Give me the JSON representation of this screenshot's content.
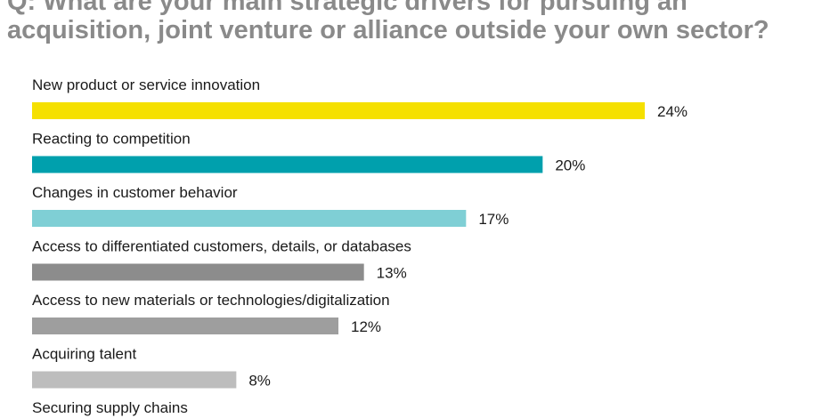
{
  "header": {
    "title_line1": "Q: What are your main strategic drivers for pursuing an",
    "title_line2": "acquisition, joint venture or alliance outside your own sector?"
  },
  "chart_data": {
    "type": "bar",
    "orientation": "horizontal",
    "title": "Q: What are your main strategic drivers for pursuing an acquisition, joint venture or alliance outside your own sector?",
    "xlabel": "",
    "ylabel": "",
    "xlim": [
      0,
      30
    ],
    "grid": false,
    "categories": [
      "New product or service innovation",
      "Reacting to competition",
      "Changes in customer behavior",
      "Access to differentiated customers, details, or databases",
      "Access to new materials or technologies/digitalization",
      "Acquiring talent",
      "Securing supply chains"
    ],
    "values": [
      24,
      20,
      17,
      13,
      12,
      8,
      null
    ],
    "value_labels": [
      "24%",
      "20%",
      "17%",
      "13%",
      "12%",
      "8%",
      ""
    ],
    "colors": [
      "#f5e000",
      "#00a0ad",
      "#7fcfd5",
      "#8c8c8c",
      "#9e9e9e",
      "#bdbdbd",
      "#c8c8c8"
    ]
  }
}
